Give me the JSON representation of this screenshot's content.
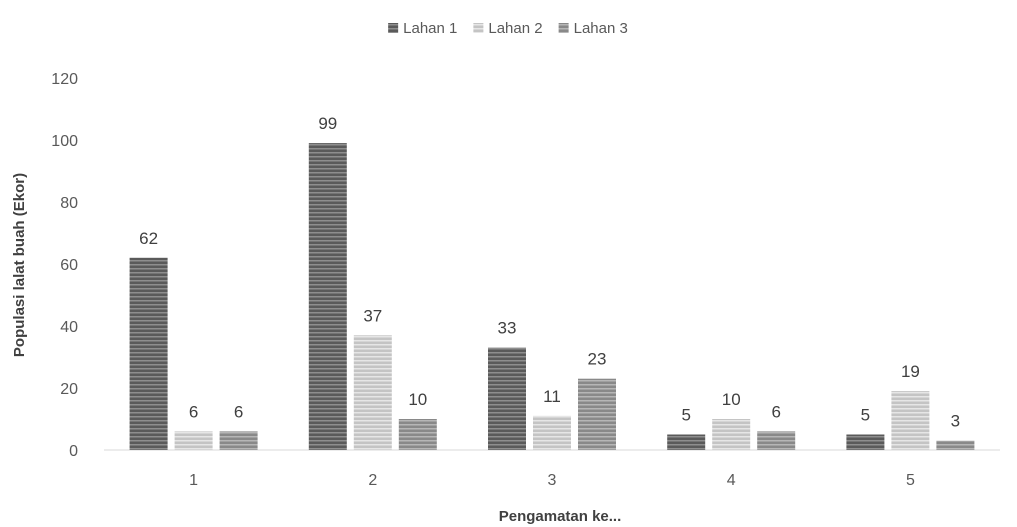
{
  "chart_data": {
    "type": "bar",
    "title": "",
    "xlabel": "Pengamatan ke...",
    "ylabel": "Populasi lalat buah (Ekor)",
    "categories": [
      "1",
      "2",
      "3",
      "4",
      "5"
    ],
    "series": [
      {
        "name": "Lahan 1",
        "values": [
          62,
          99,
          33,
          5,
          5
        ],
        "color": "#5a5a5a"
      },
      {
        "name": "Lahan 2",
        "values": [
          6,
          37,
          11,
          10,
          19
        ],
        "color": "#c2c2c2"
      },
      {
        "name": "Lahan 3",
        "values": [
          6,
          10,
          23,
          6,
          3
        ],
        "color": "#8a8a8a"
      }
    ],
    "ylim": [
      0,
      120
    ],
    "yticks": [
      "0",
      "20",
      "40",
      "60",
      "80",
      "100",
      "120"
    ],
    "grid": false,
    "legend_position": "top-center",
    "data_labels": true,
    "bar_pattern": "horizontal-stripes"
  }
}
